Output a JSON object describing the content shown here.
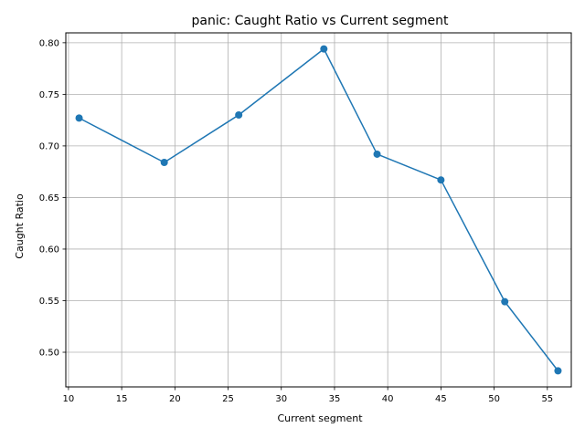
{
  "chart_data": {
    "type": "line",
    "title": "panic: Caught Ratio vs Current segment",
    "xlabel": "Current segment",
    "ylabel": "Caught Ratio",
    "x": [
      11,
      19,
      26,
      34,
      39,
      45,
      51,
      56
    ],
    "series": [
      {
        "values": [
          0.727,
          0.684,
          0.73,
          0.794,
          0.692,
          0.667,
          0.549,
          0.482
        ],
        "color": "#1f77b4",
        "marker": "circle"
      }
    ],
    "xlim": [
      9.75,
      57.25
    ],
    "ylim": [
      0.4664,
      0.8096
    ],
    "xticks": [
      10,
      15,
      20,
      25,
      30,
      35,
      40,
      45,
      50,
      55
    ],
    "xtick_labels": [
      "10",
      "15",
      "20",
      "25",
      "30",
      "35",
      "40",
      "45",
      "50",
      "55"
    ],
    "yticks": [
      0.5,
      0.55,
      0.6,
      0.65,
      0.7,
      0.75,
      0.8
    ],
    "ytick_labels": [
      "0.50",
      "0.55",
      "0.60",
      "0.65",
      "0.70",
      "0.75",
      "0.80"
    ],
    "grid": true,
    "legend": "none"
  }
}
